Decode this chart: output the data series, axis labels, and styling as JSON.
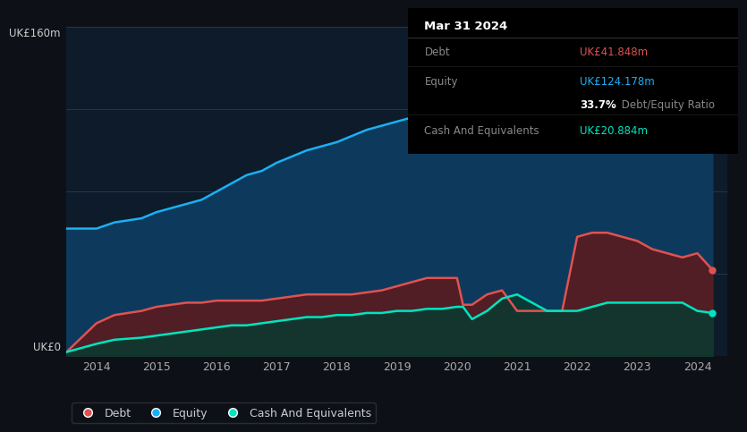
{
  "bg_color": "#0d1117",
  "plot_bg_color": "#0d1b2a",
  "grid_color": "#1e3a4a",
  "title_box": {
    "date": "Mar 31 2024",
    "debt_label": "Debt",
    "debt_value": "UK£41.848m",
    "debt_color": "#e05252",
    "equity_label": "Equity",
    "equity_value": "UK£124.178m",
    "equity_color": "#1ab0f5",
    "ratio_bold": "33.7%",
    "ratio_text": " Debt/Equity Ratio",
    "cash_label": "Cash And Equivalents",
    "cash_value": "UK£20.884m",
    "cash_color": "#00e5c0"
  },
  "y_label_top": "UK£160m",
  "y_label_bottom": "UK£0",
  "x_ticks": [
    2014,
    2015,
    2016,
    2017,
    2018,
    2019,
    2020,
    2021,
    2022,
    2023,
    2024
  ],
  "ylim": [
    0,
    160
  ],
  "xlim": [
    2013.5,
    2024.5
  ],
  "equity": {
    "x": [
      2013.5,
      2014.0,
      2014.3,
      2014.75,
      2015.0,
      2015.25,
      2015.5,
      2015.75,
      2016.0,
      2016.25,
      2016.5,
      2016.75,
      2017.0,
      2017.25,
      2017.5,
      2017.75,
      2018.0,
      2018.25,
      2018.5,
      2018.75,
      2019.0,
      2019.25,
      2019.5,
      2019.75,
      2020.0,
      2020.1,
      2020.25,
      2020.5,
      2020.75,
      2021.0,
      2021.25,
      2021.5,
      2021.75,
      2022.0,
      2022.25,
      2022.5,
      2022.75,
      2023.0,
      2023.25,
      2023.5,
      2023.75,
      2024.0,
      2024.25
    ],
    "y": [
      62,
      62,
      65,
      67,
      70,
      72,
      74,
      76,
      80,
      84,
      88,
      90,
      94,
      97,
      100,
      102,
      104,
      107,
      110,
      112,
      114,
      116,
      117,
      117,
      119,
      105,
      105,
      130,
      132,
      133,
      135,
      137,
      139,
      142,
      148,
      152,
      150,
      148,
      147,
      145,
      143,
      130,
      124
    ],
    "color": "#1ab0f5",
    "fill_color": "#0d3a5c"
  },
  "debt": {
    "x": [
      2013.5,
      2014.0,
      2014.3,
      2014.75,
      2015.0,
      2015.25,
      2015.5,
      2015.75,
      2016.0,
      2016.25,
      2016.5,
      2016.75,
      2017.0,
      2017.25,
      2017.5,
      2017.75,
      2018.0,
      2018.25,
      2018.5,
      2018.75,
      2019.0,
      2019.25,
      2019.5,
      2019.75,
      2020.0,
      2020.1,
      2020.25,
      2020.5,
      2020.75,
      2021.0,
      2021.25,
      2021.5,
      2021.75,
      2022.0,
      2022.25,
      2022.5,
      2022.75,
      2023.0,
      2023.25,
      2023.5,
      2023.75,
      2024.0,
      2024.25
    ],
    "y": [
      2,
      16,
      20,
      22,
      24,
      25,
      26,
      26,
      27,
      27,
      27,
      27,
      28,
      29,
      30,
      30,
      30,
      30,
      31,
      32,
      34,
      36,
      38,
      38,
      38,
      25,
      25,
      30,
      32,
      22,
      22,
      22,
      22,
      58,
      60,
      60,
      58,
      56,
      52,
      50,
      48,
      50,
      42
    ],
    "color": "#e05252",
    "fill_color": "#5c1a1a"
  },
  "cash": {
    "x": [
      2013.5,
      2014.0,
      2014.3,
      2014.75,
      2015.0,
      2015.25,
      2015.5,
      2015.75,
      2016.0,
      2016.25,
      2016.5,
      2016.75,
      2017.0,
      2017.25,
      2017.5,
      2017.75,
      2018.0,
      2018.25,
      2018.5,
      2018.75,
      2019.0,
      2019.25,
      2019.5,
      2019.75,
      2020.0,
      2020.1,
      2020.25,
      2020.5,
      2020.75,
      2021.0,
      2021.25,
      2021.5,
      2021.75,
      2022.0,
      2022.25,
      2022.5,
      2022.75,
      2023.0,
      2023.25,
      2023.5,
      2023.75,
      2024.0,
      2024.25
    ],
    "y": [
      2,
      6,
      8,
      9,
      10,
      11,
      12,
      13,
      14,
      15,
      15,
      16,
      17,
      18,
      19,
      19,
      20,
      20,
      21,
      21,
      22,
      22,
      23,
      23,
      24,
      24,
      18,
      22,
      28,
      30,
      26,
      22,
      22,
      22,
      24,
      26,
      26,
      26,
      26,
      26,
      26,
      22,
      21
    ],
    "color": "#00e5c0",
    "fill_color": "#0a3a30"
  },
  "legend": {
    "debt_label": "Debt",
    "equity_label": "Equity",
    "cash_label": "Cash And Equivalents"
  }
}
